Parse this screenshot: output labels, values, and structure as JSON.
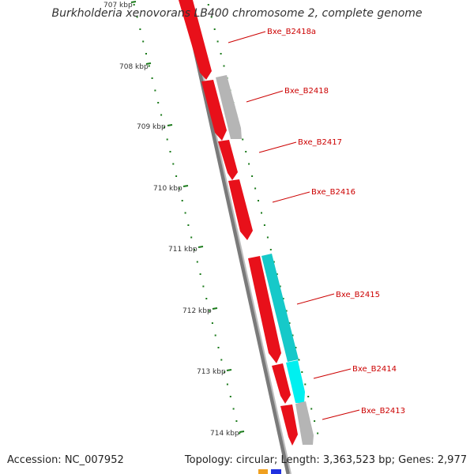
{
  "title": "Burkholderia xenovorans LB400 chromosome 2, complete genome",
  "footer": {
    "accession": "Accession: NC_007952",
    "summary": "Topology: circular; Length: 3,363,523 bp; Genes: 2,977"
  },
  "kbp_labels": [
    "707 kbp",
    "708 kbp",
    "709 kbp",
    "710 kbp",
    "711 kbp",
    "712 kbp",
    "713 kbp",
    "714 kbp"
  ],
  "genes": [
    {
      "label": "Bxe_B2418a",
      "color": "#e8101a"
    },
    {
      "label": "Bxe_B2418",
      "color": "#b5b5b5"
    },
    {
      "label": "Bxe_B2417",
      "color": "#e8101a"
    },
    {
      "label": "Bxe_B2416",
      "color": "#e8101a"
    },
    {
      "label": "Bxe_B2415",
      "color": "#16c9c9"
    },
    {
      "label": "Bxe_B2414",
      "color": "#00f0f0"
    },
    {
      "label": "Bxe_B2413",
      "color": "#b5b5b5"
    }
  ],
  "colors": {
    "gene_red": "#e8101a",
    "gene_grey": "#b5b5b5",
    "gene_cyan": "#16c9c9",
    "gene_cyan_bright": "#00f0f0",
    "tick_green": "#1a7a1a",
    "label_red": "#cc0000",
    "backbone": "#777777"
  }
}
